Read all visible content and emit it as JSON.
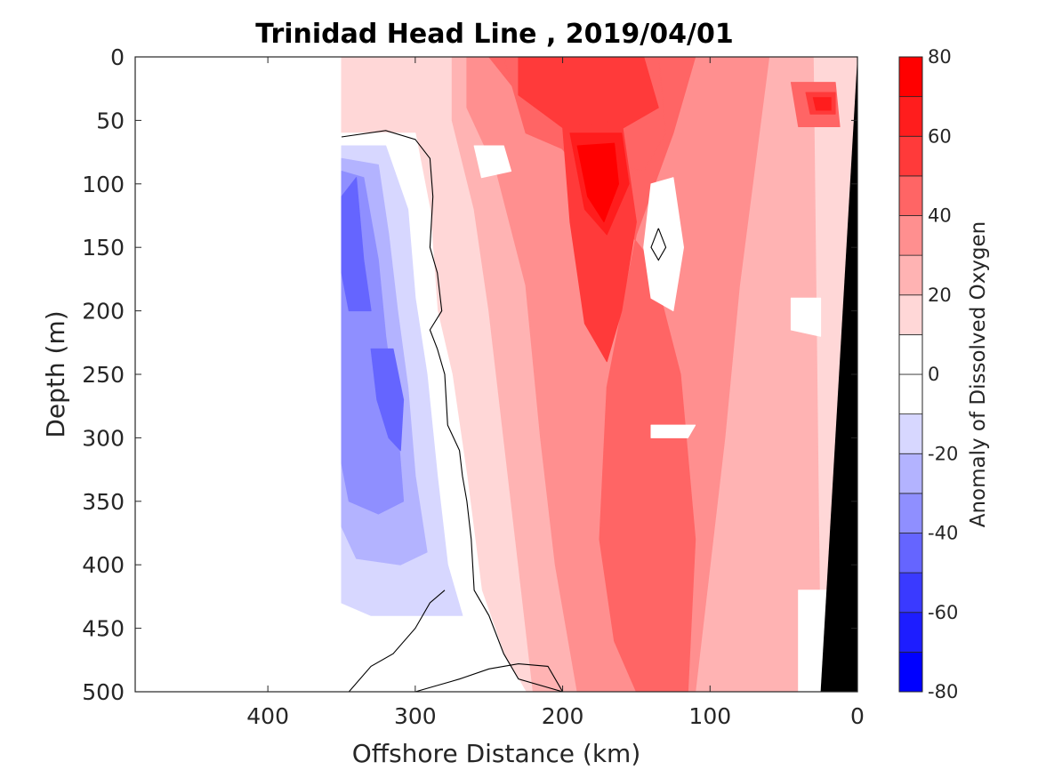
{
  "chart_data": {
    "type": "contour",
    "title": "Trinidad Head Line , 2019/04/01",
    "xlabel": "Offshore Distance (km)",
    "ylabel": "Depth (m)",
    "xlim": [
      490,
      0
    ],
    "x_reversed": true,
    "xticks": [
      400,
      300,
      200,
      100,
      0
    ],
    "ylim": [
      0,
      500
    ],
    "y_reversed": true,
    "yticks": [
      0,
      50,
      100,
      150,
      200,
      250,
      300,
      350,
      400,
      450,
      500
    ],
    "colorbar": {
      "label": "Anomaly of Dissolved Oxygen",
      "range": [
        -80,
        80
      ],
      "step": 10,
      "ticks": [
        80,
        60,
        40,
        20,
        0,
        -20,
        -40,
        -60,
        -80
      ],
      "colors": [
        "#0000ff",
        "#1d1dff",
        "#3a3aff",
        "#6565ff",
        "#8f8fff",
        "#b3b3ff",
        "#d7d7ff",
        "#ffffff",
        "#ffffff",
        "#ffd7d7",
        "#ffb3b3",
        "#ff8f8f",
        "#ff6565",
        "#ff3a3a",
        "#ff1d1d",
        "#ff0000"
      ]
    },
    "data_extent_x": [
      350,
      0
    ],
    "zero_contour": true,
    "regions": [
      {
        "name": "negative anomaly core",
        "value": -45,
        "x_range": [
          350,
          270
        ],
        "depth_range": [
          60,
          440
        ],
        "min_value": -50
      },
      {
        "name": "positive anomaly core",
        "value": 75,
        "x_range": [
          195,
          150
        ],
        "depth_range": [
          60,
          140
        ],
        "max_value": 80
      },
      {
        "name": "near-shore maximum",
        "value": 60,
        "x": 20,
        "depth": 35
      },
      {
        "name": "surface maximum band",
        "value": 60,
        "x_range": [
          260,
          130
        ],
        "depth_range": [
          0,
          60
        ]
      }
    ],
    "bathymetry": [
      {
        "x": 0,
        "depth": 0
      },
      {
        "x": 25,
        "depth": 500
      }
    ]
  },
  "icons": {
    "colorbar": "colorbar-gradient",
    "bathymetry": "seafloor-fill"
  }
}
